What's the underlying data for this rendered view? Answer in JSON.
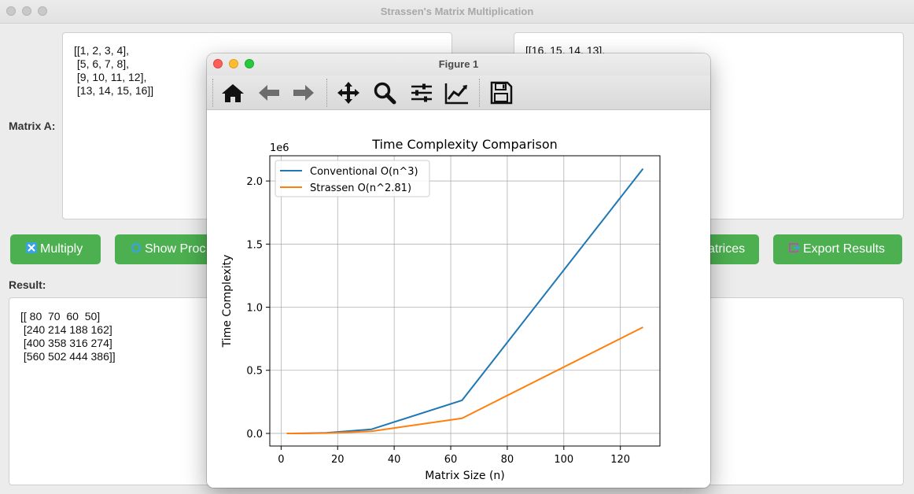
{
  "main_window": {
    "title": "Strassen's Matrix Multiplication",
    "matrix_a_label": "Matrix A:",
    "matrix_a_text": "[[1, 2, 3, 4],\n [5, 6, 7, 8],\n [9, 10, 11, 12],\n [13, 14, 15, 16]]",
    "matrix_b_text": "[[16, 15, 14, 13],",
    "buttons": {
      "multiply": "Multiply",
      "show_process": "Show Proc",
      "random_matrices": "atrices",
      "export": "Export Results"
    },
    "result_label": "Result:",
    "result_text": "[[ 80  70  60  50]\n [240 214 188 162]\n [400 358 316 274]\n [560 502 444 386]]"
  },
  "figure_window": {
    "title": "Figure 1",
    "toolbar": [
      "home-icon",
      "back-arrow-icon",
      "forward-arrow-icon",
      "pan-icon",
      "zoom-icon",
      "configure-subplots-icon",
      "edit-axis-icon",
      "save-icon"
    ]
  },
  "chart_data": {
    "type": "line",
    "title": "Time Complexity Comparison",
    "xlabel": "Matrix Size (n)",
    "ylabel": "Time Complexity",
    "y_offset_label": "1e6",
    "xlim": [
      -4,
      134
    ],
    "ylim": [
      -0.1,
      2.2
    ],
    "xticks": [
      0,
      20,
      40,
      60,
      80,
      100,
      120
    ],
    "xtick_labels": [
      "0",
      "20",
      "40",
      "60",
      "80",
      "100",
      "120"
    ],
    "yticks": [
      0.0,
      0.5,
      1.0,
      1.5,
      2.0
    ],
    "ytick_labels": [
      "0.0",
      "0.5",
      "1.0",
      "1.5",
      "2.0"
    ],
    "grid": true,
    "legend_position": "top-left",
    "x": [
      2,
      4,
      8,
      16,
      32,
      64,
      128
    ],
    "series": [
      {
        "name": "Conventional O(n^3)",
        "color": "#1f77b4",
        "values": [
          8e-06,
          6.4e-05,
          0.000512,
          0.004096,
          0.032768,
          0.262144,
          2.097152
        ]
      },
      {
        "name": "Strassen O(n^2.81)",
        "color": "#ff7f0e",
        "values": [
          7e-06,
          4.9e-05,
          0.000345,
          0.002425,
          0.017036,
          0.119717,
          0.841396
        ]
      }
    ]
  }
}
